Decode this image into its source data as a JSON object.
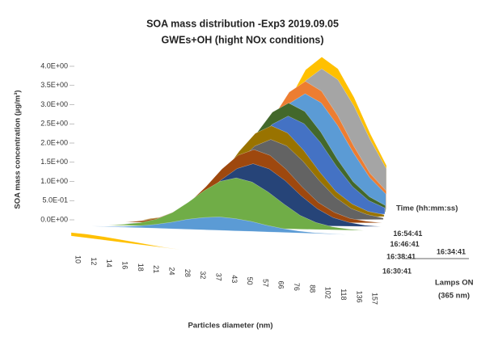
{
  "chart_data": {
    "type": "area3d",
    "title": "SOA mass distribution -Exp3 2019.09.05",
    "subtitle": "GWEs+OH (hight NOx conditions)",
    "x_label": "Particles diameter (nm)",
    "y_label": "SOA mass concentration (µg/m³)",
    "depth_label": "Time (hh:mm:ss)",
    "annotations": [
      "Lamps ON",
      "(365 nm)"
    ],
    "categories": [
      "10",
      "12",
      "14",
      "16",
      "18",
      "21",
      "24",
      "28",
      "32",
      "37",
      "43",
      "50",
      "57",
      "66",
      "76",
      "88",
      "102",
      "118",
      "136",
      "157"
    ],
    "ylim": [
      0,
      4
    ],
    "yticks": [
      {
        "value": 0,
        "label": "0.0E+00"
      },
      {
        "value": 0.5,
        "label": "5.0E-01"
      },
      {
        "value": 1,
        "label": "1.0E+00"
      },
      {
        "value": 1.5,
        "label": "1.5E+00"
      },
      {
        "value": 2,
        "label": "2.0E+00"
      },
      {
        "value": 2.5,
        "label": "2.5E+00"
      },
      {
        "value": 3,
        "label": "3.0E+00"
      },
      {
        "value": 3.5,
        "label": "3.5E+00"
      },
      {
        "value": 4,
        "label": "4.0E+00"
      }
    ],
    "series": [
      {
        "name": "16:30:41",
        "color": "#ffc000",
        "values": [
          0.09,
          0.1,
          0.09,
          0.07,
          0.05,
          0.03,
          0.01,
          0,
          0,
          0,
          0,
          0,
          0,
          0,
          0,
          0,
          0,
          0,
          0,
          0
        ]
      },
      {
        "name": "16:34:41",
        "color": "#5b9bd5",
        "values": [
          0,
          0,
          0,
          0,
          0,
          0,
          0,
          0,
          0,
          0,
          0,
          0,
          0,
          0,
          0,
          0,
          0,
          0,
          0,
          0
        ]
      },
      {
        "name": "16:38:41",
        "color": "#ed7d31",
        "values": [
          0,
          0,
          0,
          0,
          0,
          0,
          0,
          0,
          0,
          0,
          0,
          0,
          0,
          0,
          0,
          0,
          0,
          0,
          0,
          0
        ]
      },
      {
        "name": null,
        "color": "#a5a5a5",
        "values": [
          0,
          0,
          0,
          0,
          0,
          0,
          0,
          0,
          0,
          0,
          0,
          0,
          0,
          0,
          0,
          0,
          0,
          0,
          0,
          0
        ]
      },
      {
        "name": "16:46:41",
        "color": "#264478",
        "values": [
          0,
          0,
          0,
          0,
          0,
          0,
          0,
          0,
          0,
          0,
          0,
          0,
          0,
          0,
          0,
          0,
          0,
          0,
          0,
          0
        ]
      },
      {
        "name": null,
        "color": "#70ad47",
        "values": [
          0,
          0,
          0,
          0,
          0,
          0,
          0,
          0,
          0,
          0,
          0,
          0,
          0,
          0,
          0,
          0,
          0,
          0,
          0,
          0
        ]
      },
      {
        "name": "16:54:41",
        "color": "#5b9bd5",
        "values": [
          0,
          0,
          0.01,
          0.02,
          0.05,
          0.1,
          0.17,
          0.26,
          0.32,
          0.35,
          0.32,
          0.26,
          0.17,
          0.1,
          0.05,
          0.02,
          0.01,
          0,
          0,
          0
        ]
      },
      {
        "name": null,
        "color": "#70ad47",
        "values": [
          0,
          0,
          0,
          0.03,
          0.08,
          0.18,
          0.36,
          0.64,
          0.95,
          1.2,
          1.3,
          1.2,
          0.95,
          0.64,
          0.36,
          0.18,
          0.08,
          0.03,
          0,
          0
        ]
      },
      {
        "name": null,
        "color": "#264478",
        "values": [
          0,
          0,
          0,
          0,
          0.03,
          0.1,
          0.22,
          0.45,
          0.78,
          1.17,
          1.47,
          1.6,
          1.47,
          1.17,
          0.78,
          0.45,
          0.22,
          0.1,
          0.03,
          0
        ]
      },
      {
        "name": null,
        "color": "#9e480e",
        "values": [
          0,
          0,
          0,
          0,
          0.04,
          0.11,
          0.27,
          0.53,
          0.93,
          1.39,
          1.75,
          1.9,
          1.75,
          1.39,
          0.93,
          0.53,
          0.27,
          0.11,
          0.04,
          0
        ]
      },
      {
        "name": null,
        "color": "#636363",
        "values": [
          0,
          0,
          0,
          0,
          0,
          0.04,
          0.13,
          0.29,
          0.59,
          1.03,
          1.53,
          1.93,
          2.1,
          1.93,
          1.53,
          1.03,
          0.59,
          0.29,
          0.13,
          0.04
        ]
      },
      {
        "name": null,
        "color": "#997300",
        "values": [
          0,
          0,
          0,
          0,
          0,
          0.05,
          0.14,
          0.34,
          0.67,
          1.18,
          1.75,
          2.21,
          2.4,
          2.21,
          1.75,
          1.18,
          0.67,
          0.34,
          0.14,
          0.05
        ]
      },
      {
        "name": null,
        "color": "#4472c4",
        "values": [
          0,
          0,
          0,
          0,
          0,
          0,
          0.05,
          0.16,
          0.36,
          0.73,
          1.27,
          1.9,
          2.39,
          2.6,
          2.39,
          1.9,
          1.27,
          0.73,
          0.36,
          0.16
        ]
      },
      {
        "name": null,
        "color": "#43682b",
        "values": [
          0,
          0,
          0,
          0,
          0,
          0,
          0.06,
          0.17,
          0.41,
          0.81,
          1.42,
          2.12,
          2.67,
          2.9,
          2.67,
          2.12,
          1.42,
          0.81,
          0.41,
          0.17
        ]
      },
      {
        "name": null,
        "color": "#5b9bd5",
        "values": [
          0,
          0,
          0,
          0,
          0,
          0,
          0,
          0.06,
          0.19,
          0.43,
          0.87,
          1.52,
          2.26,
          2.85,
          3.1,
          2.85,
          2.26,
          1.52,
          0.87,
          0.43
        ]
      },
      {
        "name": null,
        "color": "#ed7d31",
        "values": [
          0,
          0,
          0,
          0,
          0,
          0,
          0,
          0.07,
          0.2,
          0.48,
          0.95,
          1.67,
          2.48,
          3.13,
          3.4,
          3.13,
          2.48,
          1.67,
          0.95,
          0.48
        ]
      },
      {
        "name": null,
        "color": "#a5a5a5",
        "values": [
          0,
          0,
          0,
          0,
          0,
          0,
          0,
          0,
          0.07,
          0.22,
          0.52,
          1.04,
          1.81,
          2.7,
          3.4,
          3.7,
          3.4,
          2.7,
          1.81,
          1.04
        ]
      },
      {
        "name": null,
        "color": "#ffc000",
        "values": [
          0,
          0,
          0,
          0,
          0,
          0,
          0,
          0,
          0.08,
          0.24,
          0.56,
          1.12,
          1.96,
          2.92,
          3.68,
          4,
          3.68,
          2.92,
          1.96,
          1.12
        ]
      }
    ]
  }
}
